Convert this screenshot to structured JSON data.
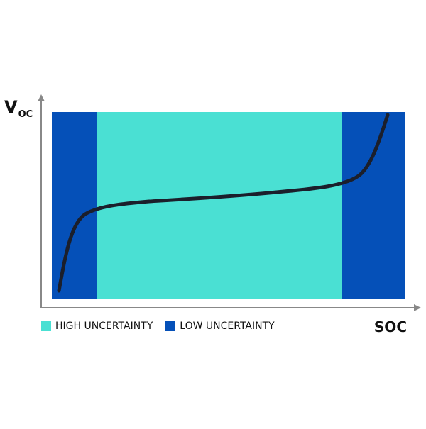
{
  "diagram": {
    "y_axis_label": "V",
    "y_axis_subscript": "OC",
    "x_axis_label": "SOC",
    "regions": [
      {
        "name": "low-uncertainty-left",
        "start_soc": 0.0,
        "end_soc": 0.13,
        "type": "low"
      },
      {
        "name": "high-uncertainty",
        "start_soc": 0.13,
        "end_soc": 0.83,
        "type": "high"
      },
      {
        "name": "low-uncertainty-right",
        "start_soc": 0.83,
        "end_soc": 1.0,
        "type": "low"
      }
    ],
    "curve": "open-circuit-voltage-vs-soc",
    "legend": [
      {
        "label": "HIGH UNCERTAINTY",
        "color": "#4ae0d3"
      },
      {
        "label": "LOW UNCERTAINTY",
        "color": "#0550b8"
      }
    ]
  },
  "colors": {
    "high": "#4ae0d3",
    "low": "#0550b8",
    "curve": "#1b1f2b",
    "axis": "#888888"
  }
}
